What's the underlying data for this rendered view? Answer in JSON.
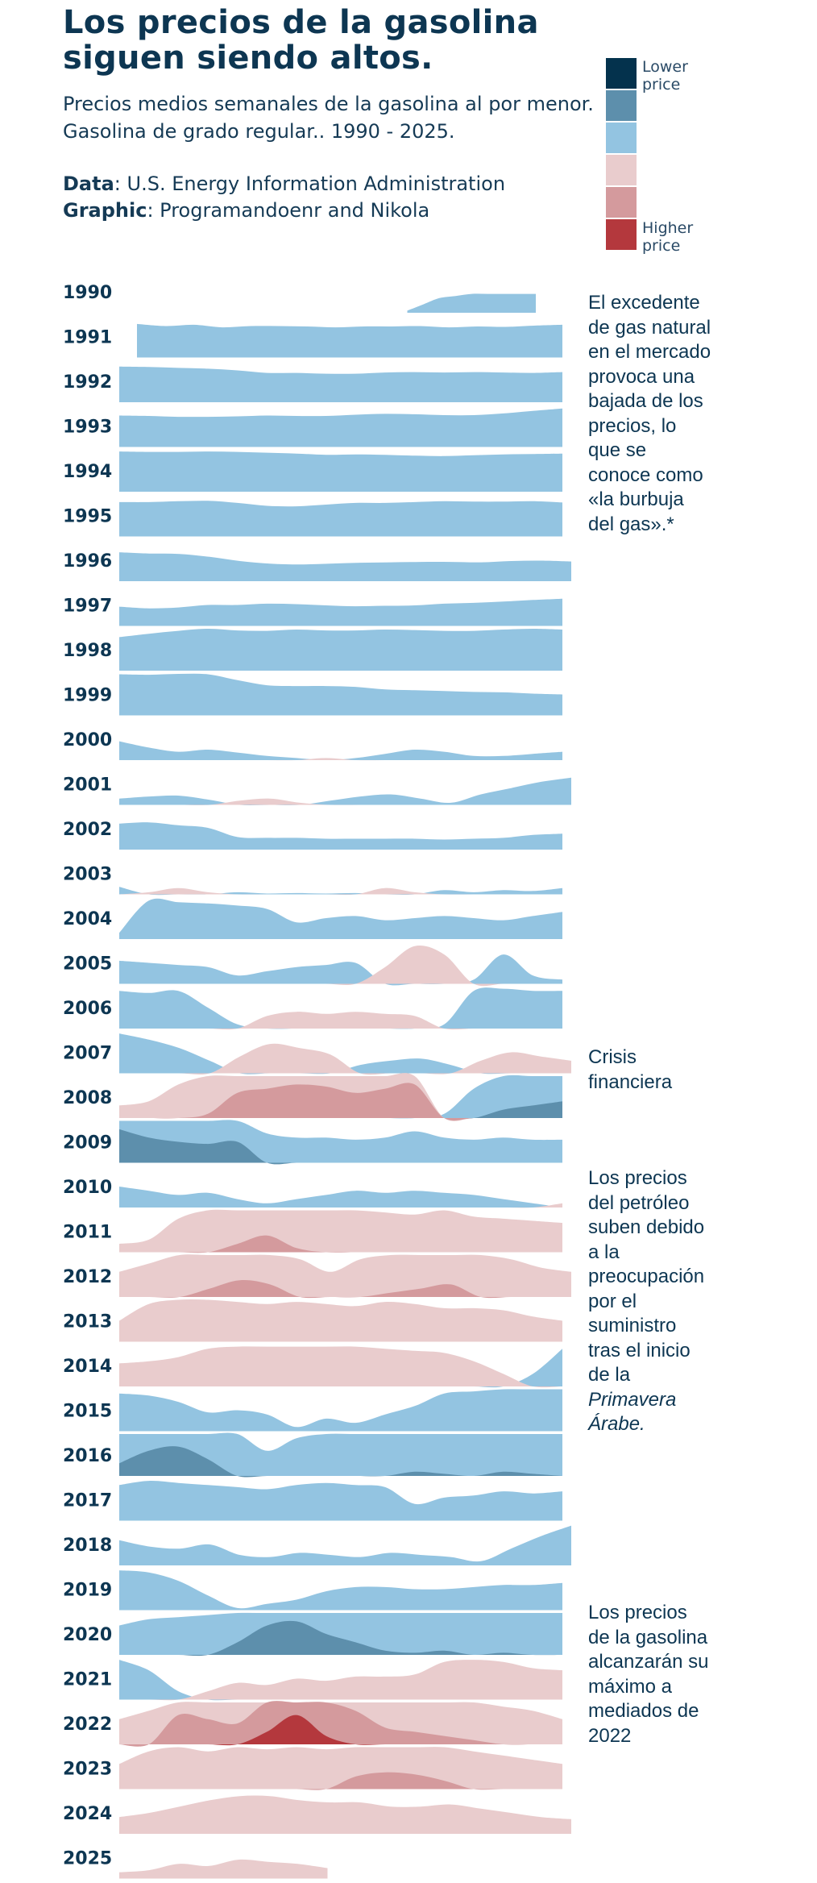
{
  "header": {
    "title": "Los precios de la gasolina siguen siendo altos.",
    "subtitle": "Precios medios semanales de la gasolina al por menor. Gasolina de grado regular.. 1990 - 2025.",
    "data_label": "Data",
    "data_value": ": U.S. Energy Information Administration",
    "graphic_label": "Graphic",
    "graphic_value": ": Programandoenr and Nikola"
  },
  "legend": {
    "low_label": "Lower price",
    "high_label": "Higher price",
    "colors": [
      "#04324d",
      "#5d8fac",
      "#93c4e1",
      "#e9cccd",
      "#d49a9d",
      "#b4383d"
    ]
  },
  "annotations": {
    "gas_bubble": "El excedente de gas natural en el mercado provoca una bajada de los precios, lo que se conoce como «la burbuja del gas».*",
    "crisis": "Crisis financiera",
    "oil_main": "Los precios del petróleo suben debido a la preocupación por el suministro tras el inicio de la ",
    "oil_italic": "Primavera Árabe.",
    "peak_2022": "Los precios de la gasolina alcanzarán su máximo a mediados de 2022"
  },
  "chart_data": {
    "type": "area",
    "chart_form": "horizon chart, one row per year, x = week of year, band height = relative price level",
    "x_range": [
      1,
      52
    ],
    "bands": 6,
    "series": [
      {
        "year": "1990",
        "start": 0.65,
        "end": 0.94,
        "values": [
          0.05,
          0.2,
          0.35,
          0.4,
          0.45,
          0.45,
          0.45,
          0.45,
          0.45
        ]
      },
      {
        "year": "1991",
        "start": 0.04,
        "end": 1.0,
        "values": [
          0.8,
          0.75,
          0.78,
          0.72,
          0.75,
          0.75,
          0.74,
          0.72,
          0.74,
          0.74,
          0.75,
          0.72,
          0.74,
          0.73,
          0.76,
          0.78
        ]
      },
      {
        "year": "1992",
        "start": 0.0,
        "end": 1.0,
        "values": [
          0.85,
          0.84,
          0.82,
          0.8,
          0.76,
          0.7,
          0.7,
          0.68,
          0.68,
          0.71,
          0.72,
          0.71,
          0.72,
          0.71,
          0.7,
          0.72
        ]
      },
      {
        "year": "1993",
        "start": 0.0,
        "end": 1.0,
        "values": [
          0.75,
          0.74,
          0.72,
          0.72,
          0.73,
          0.75,
          0.74,
          0.74,
          0.77,
          0.79,
          0.78,
          0.76,
          0.76,
          0.8,
          0.86,
          0.92
        ]
      },
      {
        "year": "1994",
        "start": 0.0,
        "end": 1.0,
        "values": [
          0.96,
          0.95,
          0.95,
          0.96,
          0.95,
          0.93,
          0.91,
          0.88,
          0.89,
          0.88,
          0.86,
          0.85,
          0.87,
          0.89,
          0.9,
          0.91
        ]
      },
      {
        "year": "1995",
        "start": 0.0,
        "end": 1.0,
        "values": [
          0.82,
          0.82,
          0.84,
          0.85,
          0.8,
          0.73,
          0.72,
          0.76,
          0.8,
          0.8,
          0.82,
          0.84,
          0.83,
          0.83,
          0.84,
          0.81
        ]
      },
      {
        "year": "1996",
        "start": 0.0,
        "end": 1.02,
        "values": [
          0.69,
          0.66,
          0.65,
          0.58,
          0.48,
          0.42,
          0.4,
          0.42,
          0.44,
          0.45,
          0.46,
          0.46,
          0.45,
          0.48,
          0.49,
          0.47
        ]
      },
      {
        "year": "1997",
        "start": 0.0,
        "end": 1.0,
        "values": [
          0.46,
          0.42,
          0.44,
          0.5,
          0.5,
          0.53,
          0.52,
          0.49,
          0.47,
          0.48,
          0.49,
          0.53,
          0.55,
          0.58,
          0.62,
          0.65
        ]
      },
      {
        "year": "1998",
        "start": 0.0,
        "end": 1.0,
        "values": [
          0.8,
          0.88,
          0.95,
          1.0,
          0.96,
          0.95,
          0.98,
          0.96,
          0.96,
          0.98,
          0.97,
          0.95,
          0.95,
          0.98,
          1.0,
          0.98
        ]
      },
      {
        "year": "1999",
        "start": 0.0,
        "end": 1.0,
        "values": [
          0.98,
          0.97,
          0.99,
          0.98,
          0.84,
          0.72,
          0.7,
          0.7,
          0.68,
          0.62,
          0.6,
          0.58,
          0.56,
          0.55,
          0.52,
          0.5
        ]
      },
      {
        "year": "2000",
        "start": 0.0,
        "end": 1.0,
        "values": [
          0.45,
          0.3,
          0.2,
          0.25,
          0.18,
          0.1,
          0.05,
          -0.05,
          0.05,
          0.15,
          0.25,
          0.2,
          0.1,
          0.1,
          0.15,
          0.2
        ]
      },
      {
        "year": "2001",
        "start": 0.0,
        "end": 1.02,
        "values": [
          0.15,
          0.2,
          0.22,
          0.12,
          -0.1,
          -0.15,
          -0.05,
          0.1,
          0.2,
          0.25,
          0.15,
          0.05,
          0.25,
          0.4,
          0.55,
          0.65
        ]
      },
      {
        "year": "2002",
        "start": 0.0,
        "end": 1.0,
        "values": [
          0.62,
          0.65,
          0.58,
          0.52,
          0.3,
          0.28,
          0.28,
          0.26,
          0.26,
          0.26,
          0.26,
          0.24,
          0.26,
          0.28,
          0.35,
          0.38
        ]
      },
      {
        "year": "2003",
        "start": 0.0,
        "end": 1.0,
        "values": [
          0.18,
          -0.05,
          -0.15,
          -0.05,
          0.05,
          0.02,
          0.03,
          0.02,
          0.03,
          -0.15,
          -0.05,
          0.1,
          0.05,
          0.1,
          0.08,
          0.15
        ]
      },
      {
        "year": "2004",
        "start": 0.0,
        "end": 1.0,
        "values": [
          0.15,
          0.92,
          0.88,
          0.85,
          0.8,
          0.72,
          0.4,
          0.5,
          0.55,
          0.45,
          0.5,
          0.55,
          0.5,
          0.45,
          0.55,
          0.65
        ]
      },
      {
        "year": "2005",
        "start": 0.0,
        "end": 1.0,
        "values": [
          0.55,
          0.5,
          0.45,
          0.4,
          0.2,
          0.3,
          0.4,
          0.45,
          0.5,
          -0.4,
          -0.9,
          -0.7,
          0.1,
          0.7,
          0.2,
          0.1
        ]
      },
      {
        "year": "2006",
        "start": 0.0,
        "end": 1.0,
        "values": [
          0.9,
          0.85,
          0.9,
          0.5,
          0.1,
          -0.3,
          -0.4,
          -0.35,
          -0.4,
          -0.35,
          -0.3,
          0.1,
          0.9,
          0.95,
          0.9,
          0.9
        ]
      },
      {
        "year": "2007",
        "start": 0.0,
        "end": 1.02,
        "values": [
          0.95,
          0.8,
          0.6,
          0.3,
          -0.4,
          -0.7,
          -0.6,
          -0.45,
          0.2,
          0.3,
          0.35,
          0.2,
          -0.3,
          -0.5,
          -0.4,
          -0.3
        ]
      },
      {
        "year": "2008",
        "start": 0.0,
        "end": 1.0,
        "values": [
          -0.3,
          -0.4,
          -0.8,
          -1.1,
          -1.6,
          -1.7,
          -1.8,
          -1.75,
          -1.6,
          -1.7,
          -1.8,
          0.1,
          0.7,
          1.2,
          1.3,
          1.4
        ]
      },
      {
        "year": "2009",
        "start": 0.0,
        "end": 1.0,
        "values": [
          1.8,
          1.6,
          1.5,
          1.45,
          1.5,
          0.7,
          0.6,
          0.6,
          0.55,
          0.6,
          0.75,
          0.6,
          0.55,
          0.6,
          0.55,
          0.55
        ]
      },
      {
        "year": "2010",
        "start": 0.0,
        "end": 1.0,
        "values": [
          0.5,
          0.4,
          0.3,
          0.35,
          0.2,
          0.1,
          0.2,
          0.3,
          0.4,
          0.35,
          0.4,
          0.35,
          0.3,
          0.2,
          0.1,
          -0.1
        ]
      },
      {
        "year": "2011",
        "start": 0.0,
        "end": 1.0,
        "values": [
          -0.2,
          -0.3,
          -0.8,
          -1.0,
          -1.2,
          -1.4,
          -1.1,
          -1.0,
          -1.0,
          -0.95,
          -0.9,
          -1.0,
          -0.85,
          -0.8,
          -0.75,
          -0.7
        ]
      },
      {
        "year": "2012",
        "start": 0.0,
        "end": 1.02,
        "values": [
          -0.6,
          -0.8,
          -1.0,
          -1.2,
          -1.4,
          -1.3,
          -0.9,
          -0.6,
          -0.9,
          -1.1,
          -1.2,
          -1.3,
          -1.0,
          -0.9,
          -0.7,
          -0.6
        ]
      },
      {
        "year": "2013",
        "start": 0.0,
        "end": 1.0,
        "values": [
          -0.5,
          -0.9,
          -1.0,
          -1.0,
          -0.95,
          -0.9,
          -0.95,
          -0.9,
          -0.85,
          -0.95,
          -0.9,
          -0.8,
          -0.8,
          -0.75,
          -0.6,
          -0.5
        ]
      },
      {
        "year": "2014",
        "start": 0.0,
        "end": 1.0,
        "values": [
          -0.55,
          -0.6,
          -0.7,
          -0.9,
          -0.95,
          -0.95,
          -0.95,
          -0.95,
          -0.95,
          -0.9,
          -0.85,
          -0.8,
          -0.6,
          -0.3,
          0.3,
          0.9
        ]
      },
      {
        "year": "2015",
        "start": 0.0,
        "end": 1.0,
        "values": [
          0.9,
          0.85,
          0.7,
          0.45,
          0.5,
          0.4,
          0.1,
          0.3,
          0.2,
          0.4,
          0.6,
          0.9,
          0.95,
          1.0,
          1.0,
          1.0
        ]
      },
      {
        "year": "2016",
        "start": 0.0,
        "end": 1.0,
        "values": [
          1.3,
          1.6,
          1.7,
          1.4,
          1.0,
          0.6,
          0.9,
          1.0,
          1.0,
          1.0,
          1.1,
          1.05,
          1.0,
          1.1,
          1.05,
          1.0
        ]
      },
      {
        "year": "2017",
        "start": 0.0,
        "end": 1.0,
        "values": [
          0.85,
          0.95,
          0.9,
          0.85,
          0.8,
          0.75,
          0.85,
          0.9,
          0.85,
          0.8,
          0.4,
          0.55,
          0.6,
          0.7,
          0.65,
          0.7
        ]
      },
      {
        "year": "2018",
        "start": 0.0,
        "end": 1.02,
        "values": [
          0.6,
          0.45,
          0.4,
          0.5,
          0.25,
          0.2,
          0.3,
          0.25,
          0.2,
          0.3,
          0.25,
          0.2,
          0.1,
          0.4,
          0.7,
          0.95
        ]
      },
      {
        "year": "2019",
        "start": 0.0,
        "end": 1.0,
        "values": [
          0.95,
          0.9,
          0.7,
          0.35,
          0.05,
          0.15,
          0.25,
          0.45,
          0.55,
          0.55,
          0.5,
          0.5,
          0.55,
          0.6,
          0.6,
          0.65
        ]
      },
      {
        "year": "2020",
        "start": 0.0,
        "end": 1.0,
        "values": [
          0.7,
          0.85,
          0.9,
          0.95,
          1.3,
          1.7,
          1.8,
          1.5,
          1.3,
          1.1,
          1.05,
          1.1,
          1.0,
          1.05,
          1.0,
          1.0
        ]
      },
      {
        "year": "2021",
        "start": 0.0,
        "end": 1.0,
        "values": [
          0.95,
          0.7,
          0.2,
          -0.2,
          -0.4,
          -0.35,
          -0.5,
          -0.45,
          -0.55,
          -0.55,
          -0.6,
          -0.9,
          -0.95,
          -0.9,
          -0.75,
          -0.7
        ]
      },
      {
        "year": "2022",
        "start": 0.0,
        "end": 1.0,
        "values": [
          -0.6,
          -0.8,
          -1.7,
          -1.6,
          -1.5,
          -2.3,
          -2.7,
          -2.2,
          -1.8,
          -1.4,
          -1.3,
          -1.2,
          -1.1,
          -0.9,
          -0.8,
          -0.6
        ]
      },
      {
        "year": "2023",
        "start": 0.0,
        "end": 1.0,
        "values": [
          -0.6,
          -0.9,
          -1.0,
          -0.9,
          -1.0,
          -0.95,
          -1.0,
          -0.95,
          -1.3,
          -1.4,
          -1.35,
          -1.2,
          -0.9,
          -0.8,
          -0.7,
          -0.6
        ]
      },
      {
        "year": "2024",
        "start": 0.0,
        "end": 1.02,
        "values": [
          -0.4,
          -0.5,
          -0.65,
          -0.8,
          -0.9,
          -0.9,
          -0.8,
          -0.75,
          -0.75,
          -0.65,
          -0.65,
          -0.7,
          -0.6,
          -0.5,
          -0.4,
          -0.35
        ]
      },
      {
        "year": "2025",
        "start": 0.0,
        "end": 0.47,
        "values": [
          -0.15,
          -0.2,
          -0.35,
          -0.3,
          -0.45,
          -0.4,
          -0.35,
          -0.25
        ]
      }
    ]
  }
}
